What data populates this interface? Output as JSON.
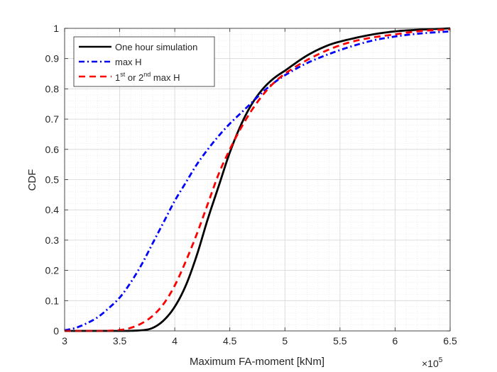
{
  "chart_data": {
    "type": "line",
    "xlabel": "Maximum FA-moment [kNm]",
    "ylabel": "CDF",
    "x_exponent_label": "×10",
    "x_exponent_value": "5",
    "xlim": [
      3,
      6.5
    ],
    "ylim": [
      0,
      1
    ],
    "x_ticks": [
      3,
      3.5,
      4,
      4.5,
      5,
      5.5,
      6,
      6.5
    ],
    "x_tick_labels": [
      "3",
      "3.5",
      "4",
      "4.5",
      "5",
      "5.5",
      "6",
      "6.5"
    ],
    "y_ticks": [
      0,
      0.1,
      0.2,
      0.3,
      0.4,
      0.5,
      0.6,
      0.7,
      0.8,
      0.9,
      1
    ],
    "y_tick_labels": [
      "0",
      "0.1",
      "0.2",
      "0.3",
      "0.4",
      "0.5",
      "0.6",
      "0.7",
      "0.8",
      "0.9",
      "1"
    ],
    "grid": true,
    "minor_grid": true,
    "legend_position": "top-left",
    "series": [
      {
        "name": "One hour simulation",
        "color": "#000000",
        "style": "solid",
        "x": [
          3.0,
          3.5,
          3.7,
          3.8,
          3.9,
          4.0,
          4.1,
          4.2,
          4.3,
          4.4,
          4.5,
          4.6,
          4.7,
          4.8,
          4.9,
          5.0,
          5.2,
          5.4,
          5.6,
          5.8,
          6.0,
          6.2,
          6.5
        ],
        "y": [
          0.0,
          0.0,
          0.002,
          0.01,
          0.035,
          0.08,
          0.15,
          0.25,
          0.37,
          0.48,
          0.59,
          0.68,
          0.75,
          0.8,
          0.835,
          0.86,
          0.91,
          0.945,
          0.965,
          0.98,
          0.99,
          0.995,
          1.0
        ]
      },
      {
        "name": "max H",
        "color": "#0000ff",
        "style": "dashdot",
        "x": [
          3.0,
          3.1,
          3.2,
          3.3,
          3.4,
          3.5,
          3.6,
          3.7,
          3.8,
          3.9,
          4.0,
          4.1,
          4.2,
          4.3,
          4.4,
          4.5,
          4.6,
          4.7,
          4.8,
          4.9,
          5.0,
          5.2,
          5.4,
          5.6,
          5.8,
          6.0,
          6.2,
          6.5
        ],
        "y": [
          0.002,
          0.01,
          0.025,
          0.045,
          0.075,
          0.11,
          0.16,
          0.22,
          0.29,
          0.36,
          0.43,
          0.49,
          0.55,
          0.6,
          0.645,
          0.685,
          0.72,
          0.755,
          0.79,
          0.82,
          0.845,
          0.885,
          0.915,
          0.94,
          0.96,
          0.973,
          0.982,
          0.99
        ]
      },
      {
        "name": "1st or 2nd max H",
        "color": "#ff0000",
        "style": "dashed",
        "x": [
          3.0,
          3.3,
          3.5,
          3.6,
          3.7,
          3.8,
          3.9,
          4.0,
          4.1,
          4.2,
          4.3,
          4.4,
          4.5,
          4.6,
          4.7,
          4.8,
          4.9,
          5.0,
          5.2,
          5.4,
          5.6,
          5.8,
          6.0,
          6.2,
          6.5
        ],
        "y": [
          0.0,
          0.0,
          0.003,
          0.01,
          0.025,
          0.05,
          0.09,
          0.15,
          0.23,
          0.32,
          0.42,
          0.52,
          0.6,
          0.67,
          0.73,
          0.78,
          0.82,
          0.85,
          0.895,
          0.93,
          0.955,
          0.97,
          0.98,
          0.99,
          0.997
        ]
      }
    ],
    "legend": {
      "entries": [
        {
          "text": "One hour simulation"
        },
        {
          "text": "max H"
        },
        {
          "pre": "1",
          "sup1": "st",
          "mid": " or 2",
          "sup2": "nd",
          "post": " max H"
        }
      ]
    }
  }
}
